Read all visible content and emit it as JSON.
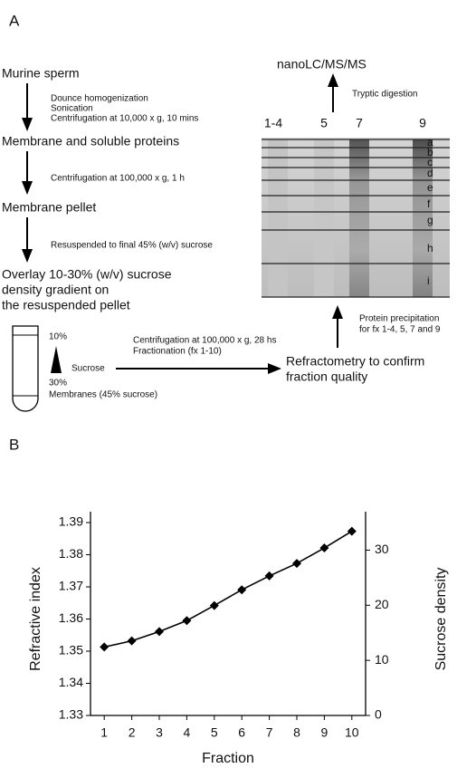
{
  "panel_a": {
    "label": "A",
    "steps": [
      "Murine sperm",
      "Membrane and soluble proteins",
      "Membrane pellet",
      "Overlay 10-30% (w/v) sucrose",
      "density gradient on",
      "the resuspended pellet",
      "Refractometry to confirm",
      "fraction quality",
      "nanoLC/MS/MS"
    ],
    "notes": [
      "Dounce homogenization",
      "Sonication",
      "Centrifugation at 10,000 x g, 10 mins",
      "Centrifugation at 100,000 x g, 1 h",
      "Resuspended to final 45% (w/v) sucrose",
      "Centrifugation at 100,000 x g, 28 hs",
      "Fractionation (fx 1-10)",
      "Protein precipitation",
      "for fx 1-4, 5, 7 and 9",
      "Tryptic digestion"
    ],
    "tube_labels": [
      "10%",
      "Sucrose",
      "30%",
      "Membranes (45% sucrose)"
    ],
    "lanes": [
      "1-4",
      "5",
      "7",
      "9"
    ],
    "bands": [
      "a",
      "b",
      "c",
      "d",
      "e",
      "f",
      "g",
      "h",
      "i"
    ]
  },
  "chart_data": {
    "type": "line",
    "panel_label": "B",
    "x_label": "Fraction",
    "y_label": "Refractive index",
    "y2_label": "Sucrose density",
    "x": [
      1,
      2,
      3,
      4,
      5,
      6,
      7,
      8,
      9,
      10
    ],
    "series": [
      {
        "name": "Refractive index",
        "color": "#000000",
        "values": [
          1.3513,
          1.3532,
          1.3561,
          1.3595,
          1.3642,
          1.3691,
          1.3734,
          1.3773,
          1.3821,
          1.3873
        ]
      }
    ],
    "xlim": [
      0.5,
      10.5
    ],
    "xticks": [
      1,
      2,
      3,
      4,
      5,
      6,
      7,
      8,
      9,
      10
    ],
    "ylim": [
      1.33,
      1.39
    ],
    "yticks": [
      1.33,
      1.34,
      1.35,
      1.36,
      1.37,
      1.38,
      1.39
    ],
    "y2lim": [
      0,
      35
    ],
    "y2ticks": [
      0,
      10,
      20,
      30
    ]
  }
}
